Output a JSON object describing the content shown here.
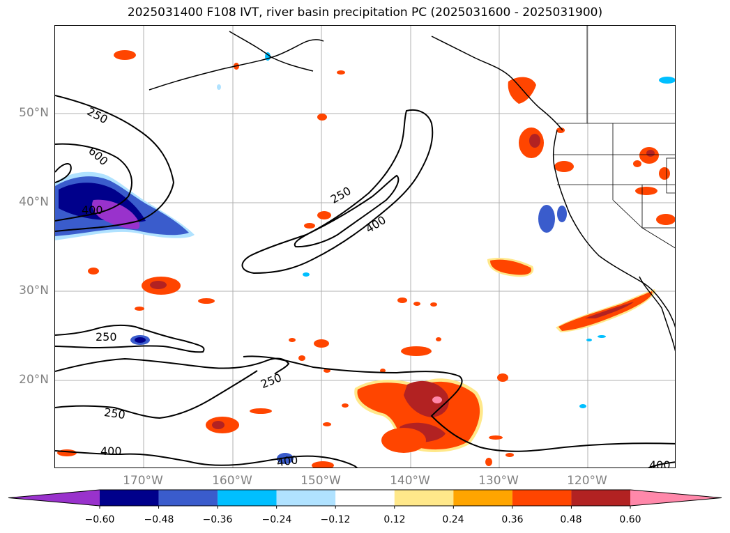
{
  "title": "2025031400 F108 IVT, river basin precipitation PC (2025031600 - 2025031900)",
  "lat_labels": [
    "50°N",
    "40°N",
    "30°N",
    "20°N"
  ],
  "lon_labels": [
    "170°W",
    "160°W",
    "150°W",
    "140°W",
    "130°W",
    "120°W"
  ],
  "contour_labels": [
    "250",
    "600",
    "400",
    "250",
    "400",
    "250",
    "250",
    "250",
    "400",
    "400",
    "400"
  ],
  "colorbar": {
    "ticks": [
      "−0.60",
      "−0.48",
      "−0.36",
      "−0.24",
      "−0.12",
      "0.12",
      "0.24",
      "0.36",
      "0.48",
      "0.60"
    ],
    "colors": [
      "#9932cc",
      "#00008b",
      "#3a5ccc",
      "#00bfff",
      "#b0e2ff",
      "#ffffff",
      "#ffe88a",
      "#ffa500",
      "#ff4500",
      "#b22222",
      "#ff88aa"
    ]
  }
}
